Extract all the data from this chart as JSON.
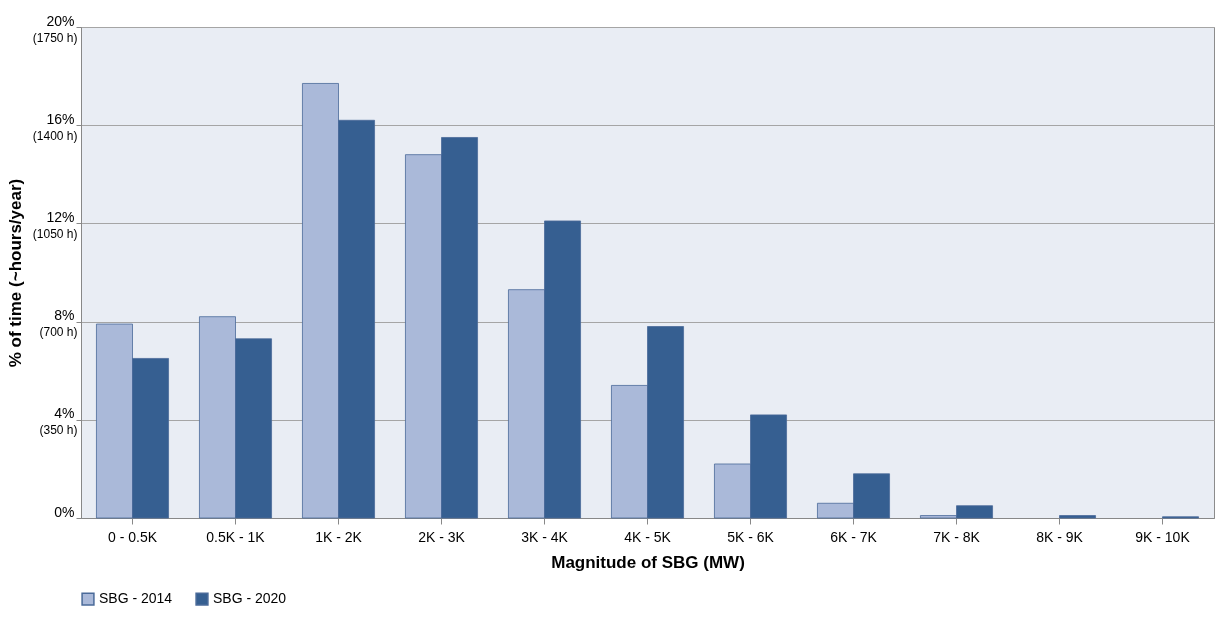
{
  "chart_data": {
    "type": "bar",
    "xlabel": "Magnitude of SBG (MW)",
    "y2label": "% of time (~hours/year)",
    "categories": [
      "0 - 0.5K",
      "0.5K - 1K",
      "1K - 2K",
      "2K - 3K",
      "3K - 4K",
      "4K - 5K",
      "5K - 6K",
      "6K - 7K",
      "7K - 8K",
      "8K - 9K",
      "9K - 10K"
    ],
    "series": [
      {
        "name": "SBG - 2014",
        "color": "#aab9d9",
        "values": [
          7.9,
          8.2,
          17.7,
          14.8,
          9.3,
          5.4,
          2.2,
          0.6,
          0.1,
          0,
          0
        ]
      },
      {
        "name": "SBG - 2020",
        "color": "#365f91",
        "values": [
          6.5,
          7.3,
          16.2,
          15.5,
          12.1,
          7.8,
          4.2,
          1.8,
          0.5,
          0.1,
          0.05
        ]
      }
    ],
    "ylim": [
      0,
      20
    ],
    "yticks": [
      {
        "value": 0,
        "label": "0%"
      },
      {
        "value": 4,
        "label": "4%"
      },
      {
        "value": 8,
        "label": "8%"
      },
      {
        "value": 12,
        "label": "12%"
      },
      {
        "value": 16,
        "label": "16%"
      },
      {
        "value": 20,
        "label": "20%"
      }
    ],
    "y2lim": [
      0,
      1750
    ],
    "y2ticks": [
      {
        "value": 350,
        "label": "(350 h)"
      },
      {
        "value": 700,
        "label": "(700 h)"
      },
      {
        "value": 1050,
        "label": "(1050 h)"
      },
      {
        "value": 1400,
        "label": "(1400 h)"
      },
      {
        "value": 1750,
        "label": "(1750 h)"
      }
    ],
    "grid": "y",
    "legend": "bottom"
  }
}
